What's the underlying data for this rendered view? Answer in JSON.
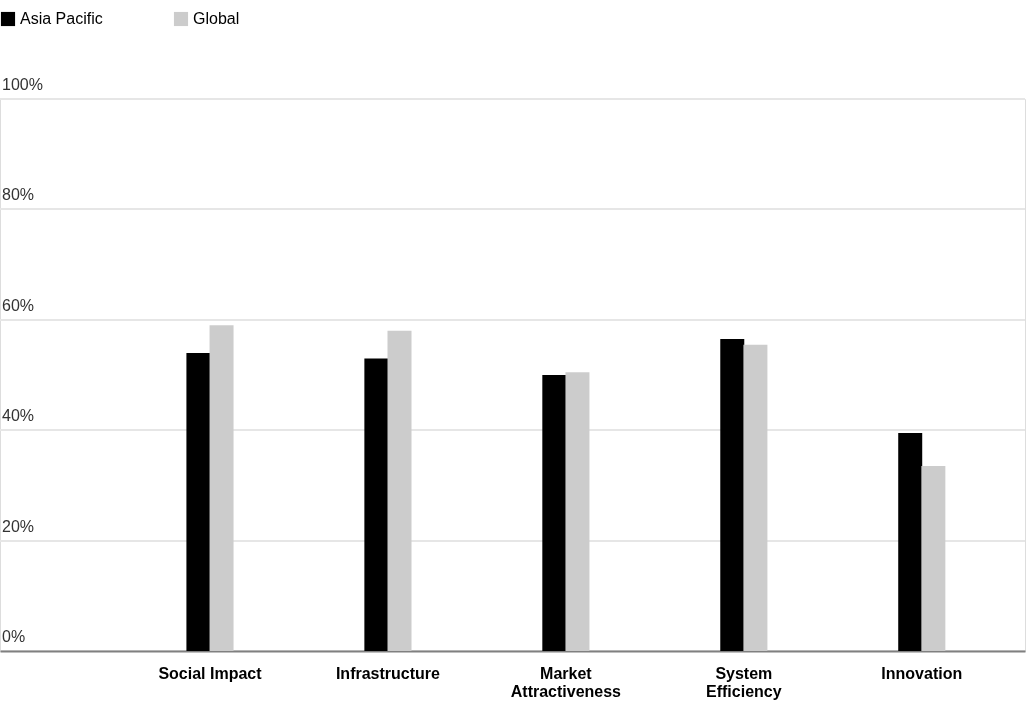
{
  "chart_data": {
    "type": "bar",
    "categories": [
      "Social Impact",
      "Infrastructure",
      "Market Attractiveness",
      "System Efficiency",
      "Innovation"
    ],
    "series": [
      {
        "name": "Asia Pacific",
        "color": "#000000",
        "values": [
          54,
          53,
          50,
          56.5,
          39.5
        ]
      },
      {
        "name": "Global",
        "color": "#cccccc",
        "values": [
          59,
          58,
          50.5,
          55.5,
          33.5
        ]
      }
    ],
    "ylim": [
      0,
      100
    ],
    "yticks": [
      {
        "value": 0,
        "label": "0%"
      },
      {
        "value": 20,
        "label": "20%"
      },
      {
        "value": 40,
        "label": "40%"
      },
      {
        "value": 60,
        "label": "60%"
      },
      {
        "value": 80,
        "label": "80%"
      },
      {
        "value": 100,
        "label": "100%"
      }
    ],
    "grid": "y",
    "legend": "top left"
  }
}
